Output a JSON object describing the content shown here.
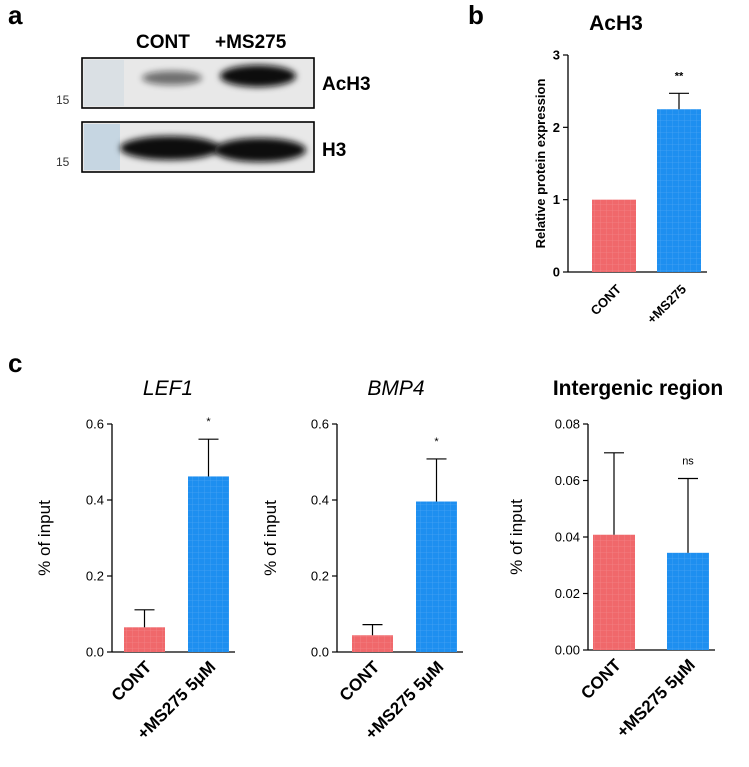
{
  "panels": {
    "a": "a",
    "b": "b",
    "c": "c"
  },
  "western_blot": {
    "lane_labels": [
      "CONT",
      "+MS275"
    ],
    "rows": [
      {
        "label": "AcH3",
        "marker": "15",
        "band_intensity": [
          0.35,
          0.95
        ]
      },
      {
        "label": "H3",
        "marker": "15",
        "band_intensity": [
          1.0,
          1.0
        ]
      }
    ]
  },
  "colors": {
    "cont": "#f0686b",
    "ms275": "#1e8ff0",
    "blot_bg": "#e6e6e6",
    "band": "#101010"
  },
  "chart_data": [
    {
      "id": "b",
      "type": "bar",
      "title": "AcH3",
      "ylabel": "Relative protein expression",
      "categories": [
        "CONT",
        "+MS275"
      ],
      "values": [
        1.0,
        2.25
      ],
      "errors": [
        0,
        0.22
      ],
      "significance": [
        "",
        "**"
      ],
      "ylim": [
        0,
        3
      ],
      "yticks": [
        "0",
        "1",
        "2",
        "3"
      ],
      "ytick_values": [
        0,
        1,
        2,
        3
      ]
    },
    {
      "id": "c1",
      "type": "bar",
      "title": "LEF1",
      "ylabel": "% of input",
      "categories": [
        "CONT",
        "+MS275 5μM"
      ],
      "values": [
        0.065,
        0.462
      ],
      "errors": [
        0.046,
        0.098
      ],
      "significance": [
        "",
        "*"
      ],
      "ylim": [
        0,
        0.6
      ],
      "yticks": [
        "0.0",
        "0.2",
        "0.4",
        "0.6"
      ],
      "ytick_values": [
        0,
        0.2,
        0.4,
        0.6
      ]
    },
    {
      "id": "c2",
      "type": "bar",
      "title": "BMP4",
      "ylabel": "% of input",
      "categories": [
        "CONT",
        "+MS275 5μM"
      ],
      "values": [
        0.044,
        0.396
      ],
      "errors": [
        0.028,
        0.112
      ],
      "significance": [
        "",
        "*"
      ],
      "ylim": [
        0,
        0.6
      ],
      "yticks": [
        "0.0",
        "0.2",
        "0.4",
        "0.6"
      ],
      "ytick_values": [
        0,
        0.2,
        0.4,
        0.6
      ]
    },
    {
      "id": "c3",
      "type": "bar",
      "title": "Intergenic region",
      "ylabel": "% of input",
      "categories": [
        "CONT",
        "+MS275 5μM"
      ],
      "values": [
        0.0408,
        0.0344
      ],
      "errors": [
        0.029,
        0.0263
      ],
      "significance": [
        "",
        "ns"
      ],
      "ylim": [
        0,
        0.08
      ],
      "yticks": [
        "0.00",
        "0.02",
        "0.04",
        "0.06",
        "0.08"
      ],
      "ytick_values": [
        0,
        0.02,
        0.04,
        0.06,
        0.08
      ]
    }
  ]
}
